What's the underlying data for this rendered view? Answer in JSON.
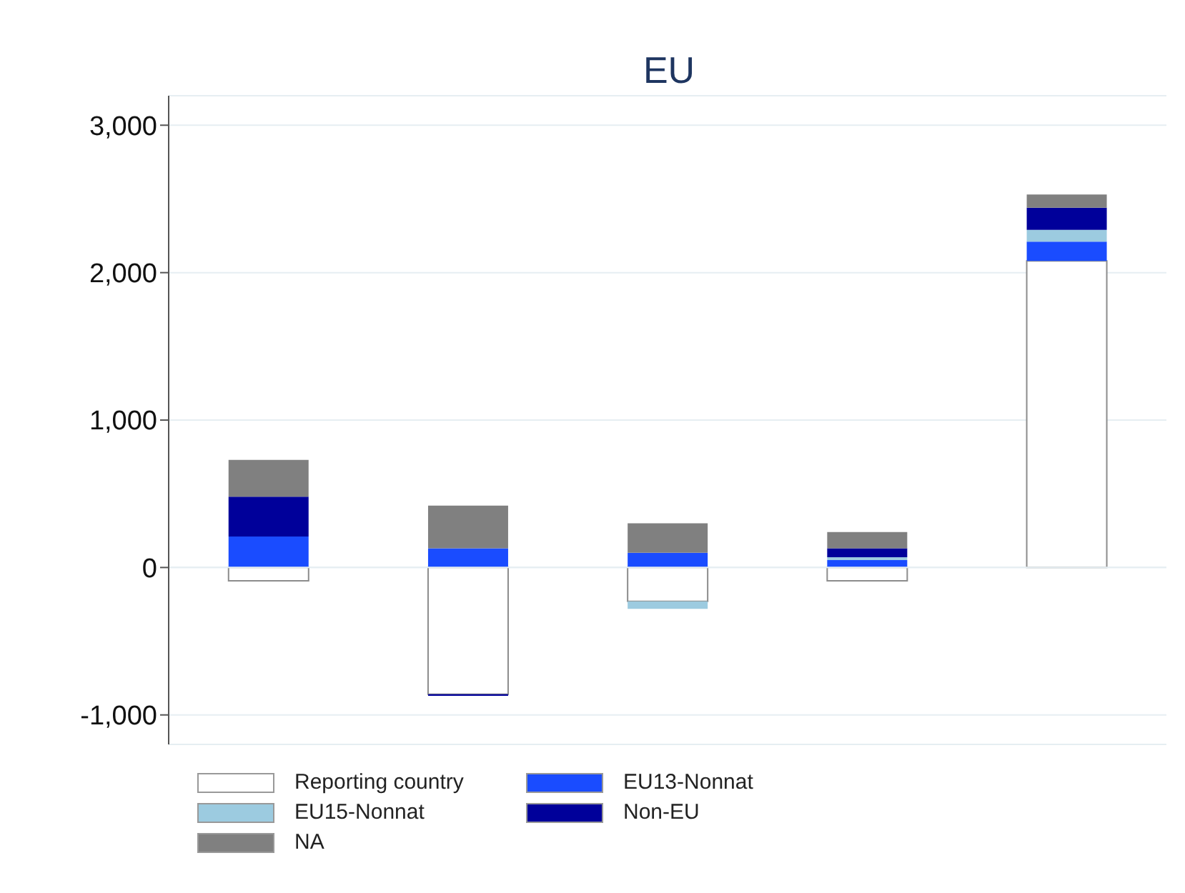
{
  "chart_data": {
    "type": "bar",
    "title": "EU",
    "stacked": true,
    "categories": [
      null,
      null,
      null,
      null,
      null
    ],
    "series": [
      {
        "name": "Reporting country",
        "color": "#ffffff",
        "values": [
          -90,
          -860,
          -230,
          -90,
          2080
        ]
      },
      {
        "name": "EU13-Nonnat",
        "color": "#1a4cff",
        "values": [
          210,
          130,
          100,
          50,
          130
        ]
      },
      {
        "name": "EU15-Nonnat",
        "color": "#9ccbe0",
        "values": [
          0,
          0,
          -50,
          20,
          80
        ]
      },
      {
        "name": "Non-EU",
        "color": "#00009a",
        "values": [
          270,
          -10,
          0,
          60,
          150
        ]
      },
      {
        "name": "NA",
        "color": "#808080",
        "values": [
          250,
          290,
          200,
          110,
          90
        ]
      }
    ],
    "ylim": [
      -1200,
      3200
    ],
    "yticks": [
      {
        "value": -1000,
        "label": "-1,000"
      },
      {
        "value": 0,
        "label": "0"
      },
      {
        "value": 1000,
        "label": "1,000"
      },
      {
        "value": 2000,
        "label": "2,000"
      },
      {
        "value": 3000,
        "label": "3,000"
      }
    ],
    "grid": "y",
    "legend": "bottom",
    "tick_labels": "y"
  }
}
